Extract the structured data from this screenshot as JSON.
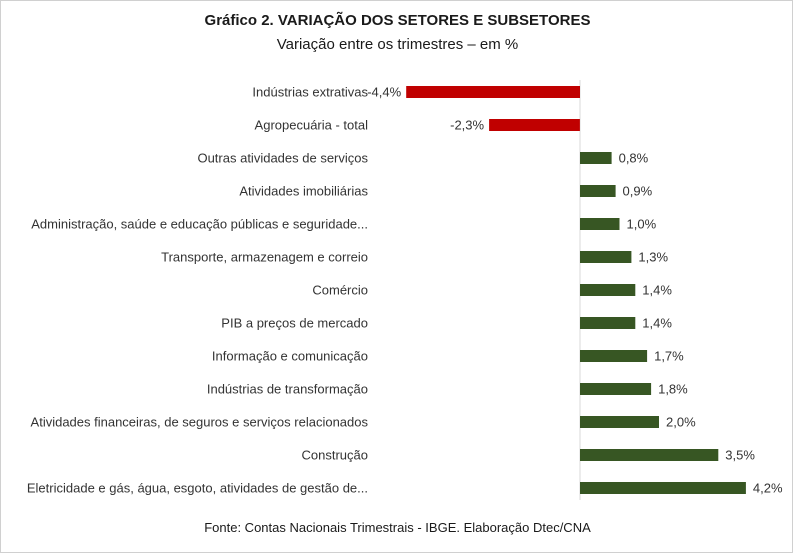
{
  "title": "Gráfico 2. VARIAÇÃO DOS SETORES E SUBSETORES",
  "subtitle": "Variação entre os trimestres – em %",
  "footer": "Fonte: Contas Nacionais Trimestrais - IBGE. Elaboração Dtec/CNA",
  "colors": {
    "negative": "#c00000",
    "positive": "#375623"
  },
  "chart_data": {
    "type": "bar",
    "orientation": "horizontal",
    "categories": [
      "Indústrias extrativas",
      "Agropecuária - total",
      "Outras atividades de serviços",
      "Atividades imobiliárias",
      "Administração, saúde e educação públicas e seguridade...",
      "Transporte, armazenagem e correio",
      "Comércio",
      "PIB a preços de mercado",
      "Informação e comunicação",
      "Indústrias de transformação",
      "Atividades financeiras, de seguros e serviços relacionados",
      "Construção",
      "Eletricidade e gás, água, esgoto, atividades de gestão de..."
    ],
    "values": [
      -4.4,
      -2.3,
      0.8,
      0.9,
      1.0,
      1.3,
      1.4,
      1.4,
      1.7,
      1.8,
      2.0,
      3.5,
      4.2
    ],
    "labels": [
      "-4,4%",
      "-2,3%",
      "0,8%",
      "0,9%",
      "1,0%",
      "1,3%",
      "1,4%",
      "1,4%",
      "1,7%",
      "1,8%",
      "2,0%",
      "3,5%",
      "4,2%"
    ],
    "grid": false,
    "legend": "none"
  }
}
